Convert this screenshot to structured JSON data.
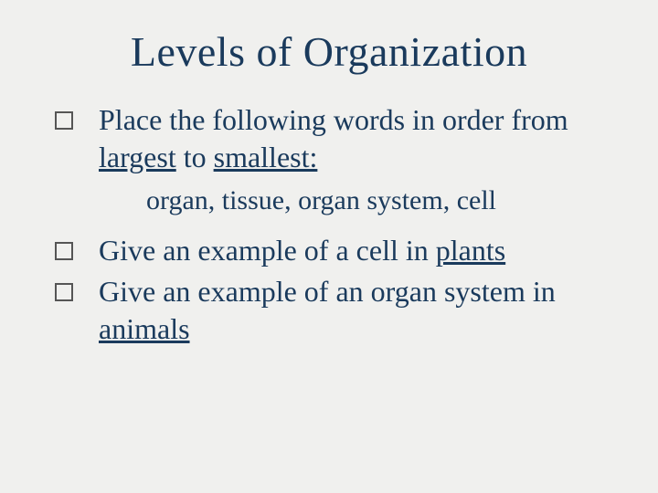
{
  "background_color": "#f0f0ee",
  "text_color": "#1a3a5c",
  "title": "Levels of Organization",
  "bullet1": {
    "prefix": "Place the following words in order from ",
    "u1": "largest",
    "mid": " to ",
    "u2": "smallest:"
  },
  "sub1": "organ, tissue, organ system, cell",
  "bullet2": {
    "prefix": "Give an example of a cell in ",
    "u1": "plants"
  },
  "bullet3": {
    "prefix": "Give an example of an organ system in ",
    "u1": "animals"
  }
}
